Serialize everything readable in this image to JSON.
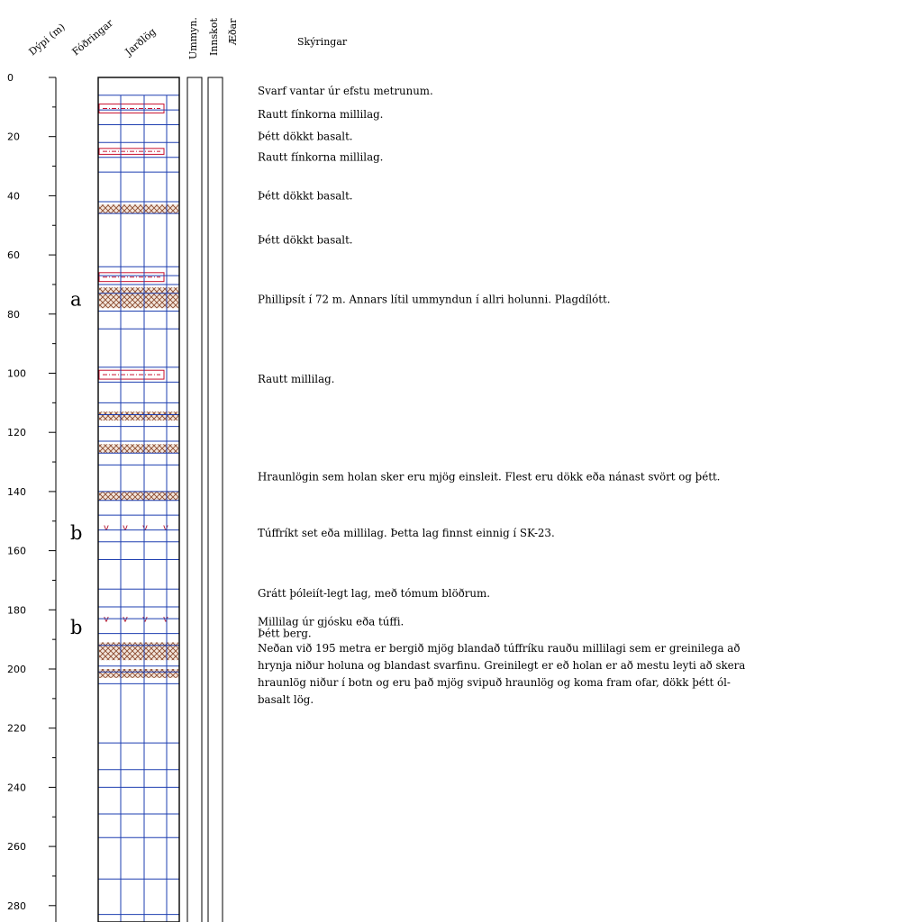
{
  "headers": {
    "depth": "Dýpi (m)",
    "casing": "Fóðringar",
    "strata": "Jarðlög",
    "alteration": "Ummyn.",
    "intrusions": "Innskot",
    "veins": "Æðar",
    "notes": "Skýringar"
  },
  "depth_axis": {
    "min": 0,
    "max": 285,
    "ticks": [
      "0",
      "20",
      "40",
      "60",
      "80",
      "100",
      "120",
      "140",
      "160",
      "180",
      "200",
      "220",
      "240",
      "260",
      "280"
    ]
  },
  "markers": [
    {
      "label": "a",
      "depth": 75
    },
    {
      "label": "b",
      "depth": 154
    },
    {
      "label": "b",
      "depth": 186
    }
  ],
  "layer_boundaries": [
    6,
    11,
    16,
    22,
    27,
    32,
    42,
    46,
    64,
    67,
    70,
    73,
    79,
    85,
    98,
    103,
    110,
    114,
    118,
    123,
    127,
    131,
    140,
    143,
    148,
    153,
    157,
    163,
    173,
    179,
    183,
    188,
    192,
    199,
    201,
    205,
    225,
    234,
    240,
    249,
    257,
    271,
    283
  ],
  "layers": [
    {
      "type": "red",
      "from": 9,
      "to": 12
    },
    {
      "type": "red",
      "from": 24,
      "to": 26
    },
    {
      "type": "hatch",
      "from": 43,
      "to": 46
    },
    {
      "type": "red",
      "from": 66,
      "to": 69
    },
    {
      "type": "hatch",
      "from": 71,
      "to": 78
    },
    {
      "type": "red",
      "from": 99,
      "to": 102
    },
    {
      "type": "hatch",
      "from": 113,
      "to": 116
    },
    {
      "type": "hatch",
      "from": 124,
      "to": 127
    },
    {
      "type": "hatch",
      "from": 140,
      "to": 143
    },
    {
      "type": "tuff",
      "from": 150,
      "to": 154
    },
    {
      "type": "tuff",
      "from": 180,
      "to": 185
    },
    {
      "type": "hatch",
      "from": 191,
      "to": 197
    },
    {
      "type": "hatch",
      "from": 200,
      "to": 203
    }
  ],
  "notes": [
    {
      "depth": 4.5,
      "lines": [
        "Svarf vantar úr efstu metrunum."
      ]
    },
    {
      "depth": 12.5,
      "lines": [
        "Rautt fínkorna millilag."
      ]
    },
    {
      "depth": 20,
      "lines": [
        "Þétt dökkt basalt."
      ]
    },
    {
      "depth": 27,
      "lines": [
        "Rautt fínkorna millilag."
      ]
    },
    {
      "depth": 40,
      "lines": [
        "Þétt dökkt basalt."
      ]
    },
    {
      "depth": 55,
      "lines": [
        "Þétt dökkt basalt."
      ]
    },
    {
      "depth": 75,
      "lines": [
        "Phillipsít í 72 m. Annars lítil ummyndun í allri holunni. Plagdílótt."
      ]
    },
    {
      "depth": 102,
      "lines": [
        "Rautt millilag."
      ]
    },
    {
      "depth": 135,
      "lines": [
        "Hraunlögin sem holan sker eru mjög einsleit. Flest eru dökk eða nánast svört og þétt."
      ]
    },
    {
      "depth": 154,
      "lines": [
        "Túffríkt set eða millilag. Þetta lag finnst einnig í SK-23."
      ]
    },
    {
      "depth": 174.5,
      "lines": [
        "Grátt þóleiít-legt lag, með tómum blöðrum."
      ]
    },
    {
      "depth": 184,
      "lines": [
        "Millilag úr gjósku eða túffi."
      ]
    },
    {
      "depth": 188,
      "lines": [
        "Þétt berg."
      ]
    },
    {
      "depth": 193,
      "lines": [
        "Neðan við 195 metra er bergið mjög blandað túffríku rauðu millilagi sem er greinilega að",
        "hrynja niður holuna og blandast svarfinu. Greinilegt er eð holan er að mestu leyti að skera",
        "hraunlög niður í botn og eru það mjög svipuð hraunlög og koma fram ofar, dökk þétt ól-",
        "basalt lög."
      ]
    }
  ],
  "colors": {
    "grid": "#1e3fb0",
    "red_layer": "#c8102e",
    "hatch": "#8b4a2e",
    "hatch_fill": "#f3e6dc",
    "tuff_mark": "#b0102a"
  }
}
